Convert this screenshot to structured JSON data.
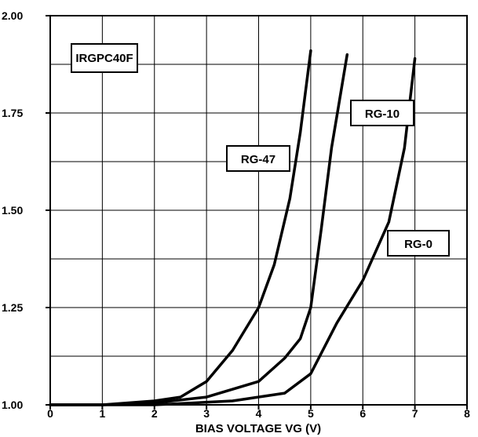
{
  "chart_data": {
    "type": "line",
    "title": "",
    "xlabel": "BIAS VOLTAGE VG (V)",
    "ylabel": "",
    "xlim": [
      0,
      8
    ],
    "ylim": [
      1.0,
      2.0
    ],
    "grid": true,
    "legend": "none",
    "x_ticks": [
      "0",
      "1",
      "2",
      "3",
      "4",
      "5",
      "6",
      "7",
      "8"
    ],
    "y_ticks": [
      "1.00",
      "1.25",
      "1.50",
      "1.75",
      "2.00"
    ],
    "annotations": [
      {
        "text": "IRGPC40F"
      },
      {
        "text": "RG-47"
      },
      {
        "text": "RG-10"
      },
      {
        "text": "RG-0"
      }
    ],
    "series": [
      {
        "label": "RG-47",
        "x": [
          0,
          1,
          2,
          2.5,
          3,
          3.5,
          4,
          4.3,
          4.6,
          4.8,
          5.0
        ],
        "y": [
          1.0,
          1.0,
          1.01,
          1.02,
          1.06,
          1.14,
          1.25,
          1.36,
          1.53,
          1.7,
          1.91
        ]
      },
      {
        "label": "RG-10",
        "x": [
          0,
          1,
          2,
          3,
          4,
          4.5,
          4.8,
          5.0,
          5.2,
          5.4,
          5.7
        ],
        "y": [
          1.0,
          1.0,
          1.005,
          1.02,
          1.06,
          1.12,
          1.17,
          1.25,
          1.45,
          1.66,
          1.9
        ]
      },
      {
        "label": "RG-0",
        "x": [
          0,
          2,
          3.5,
          4.5,
          5.0,
          5.5,
          6.0,
          6.5,
          6.8,
          7.0
        ],
        "y": [
          1.0,
          1.0,
          1.01,
          1.03,
          1.08,
          1.21,
          1.32,
          1.47,
          1.66,
          1.89
        ]
      }
    ],
    "colors": {
      "line": "#000000",
      "grid": "#000000",
      "background": "#ffffff"
    }
  }
}
